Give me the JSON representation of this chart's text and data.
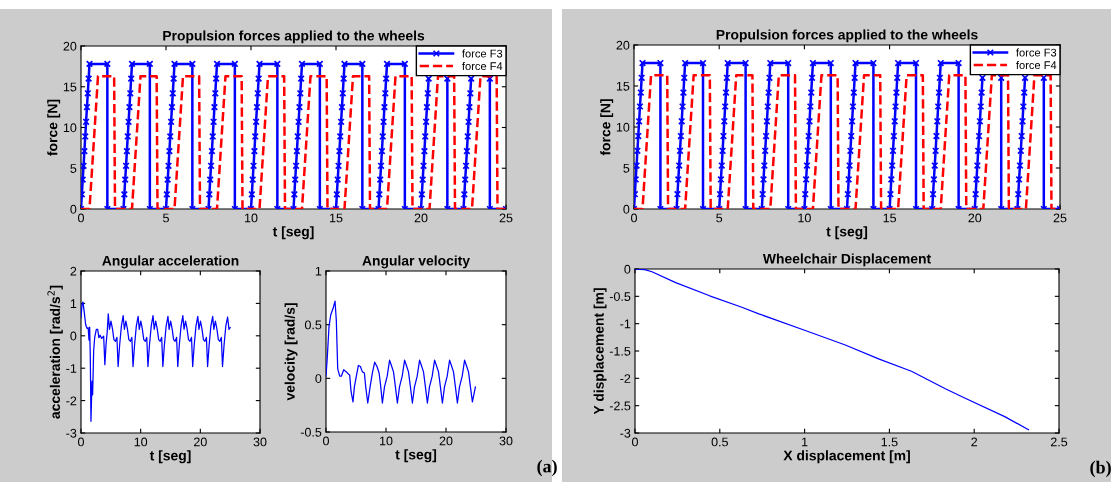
{
  "chart_data": [
    {
      "type": "line",
      "title": "Propulsion forces applied to the wheels",
      "xlabel": "t [seg]",
      "ylabel": "force [N]",
      "xlim": [
        0,
        25
      ],
      "ylim": [
        0,
        20
      ],
      "xticks": [
        0,
        5,
        10,
        15,
        20,
        25
      ],
      "yticks": [
        0,
        5,
        10,
        15,
        20
      ],
      "grid": false,
      "legend": "top right",
      "series": [
        {
          "name": "force F3",
          "color": "#0000ff",
          "marker": "cross",
          "line_style": "solid",
          "x": [
            0,
            0.05,
            0.1,
            0.15,
            0.2,
            0.25,
            0.3,
            0.35,
            0.4,
            0.45,
            0.5,
            1.55,
            1.55,
            2.5,
            2.55,
            2.6,
            2.65,
            2.7,
            2.75,
            2.8,
            2.85,
            2.9,
            2.95,
            3,
            4.05,
            4.05,
            5,
            5.05,
            5.1,
            5.15,
            5.2,
            5.25,
            5.3,
            5.35,
            5.4,
            5.45,
            5.5,
            6.55,
            6.55,
            7.5,
            7.55,
            7.6,
            7.65,
            7.7,
            7.75,
            7.8,
            7.85,
            7.9,
            7.95,
            8,
            9.05,
            9.05,
            10,
            10.05,
            10.1,
            10.15,
            10.2,
            10.25,
            10.3,
            10.35,
            10.4,
            10.45,
            10.5,
            11.55,
            11.55,
            12.5,
            12.55,
            12.6,
            12.65,
            12.7,
            12.75,
            12.8,
            12.85,
            12.9,
            12.95,
            13,
            14.05,
            14.05,
            15,
            15.05,
            15.1,
            15.15,
            15.2,
            15.25,
            15.3,
            15.35,
            15.4,
            15.45,
            15.5,
            16.55,
            16.55,
            17.5,
            17.55,
            17.6,
            17.65,
            17.7,
            17.75,
            17.8,
            17.85,
            17.9,
            17.95,
            18,
            19.05,
            19.05,
            20,
            20.05,
            20.1,
            20.15,
            20.2,
            20.25,
            20.3,
            20.35,
            20.4,
            20.45,
            null,
            21.55,
            21.55,
            22.5,
            22.55,
            22.6,
            22.65,
            22.7,
            22.75,
            22.8,
            22.85,
            22.9,
            22.95,
            null,
            24.05,
            24.05,
            25
          ],
          "values": [
            0,
            1.8,
            3.6,
            5.3,
            7.1,
            8.9,
            10.7,
            12.5,
            14.2,
            16,
            17.8,
            17.8,
            0,
            0,
            1.8,
            3.6,
            5.3,
            7.1,
            8.9,
            10.7,
            12.5,
            14.2,
            16,
            17.8,
            17.8,
            0,
            0,
            1.8,
            3.6,
            5.3,
            7.1,
            8.9,
            10.7,
            12.5,
            14.2,
            16,
            17.8,
            17.8,
            0,
            0,
            1.8,
            3.6,
            5.3,
            7.1,
            8.9,
            10.7,
            12.5,
            14.2,
            16,
            17.8,
            17.8,
            0,
            0,
            1.8,
            3.6,
            5.3,
            7.1,
            8.9,
            10.7,
            12.5,
            14.2,
            16,
            17.8,
            17.8,
            0,
            0,
            1.8,
            3.6,
            5.3,
            7.1,
            8.9,
            10.7,
            12.5,
            14.2,
            16,
            17.8,
            17.8,
            0,
            0,
            1.8,
            3.6,
            5.3,
            7.1,
            8.9,
            10.7,
            12.5,
            14.2,
            16,
            17.8,
            17.8,
            0,
            0,
            1.8,
            3.6,
            5.3,
            7.1,
            8.9,
            10.7,
            12.5,
            14.2,
            16,
            17.8,
            17.8,
            0,
            0,
            1.8,
            3.6,
            5.3,
            7.1,
            8.9,
            10.7,
            12.5,
            14.2,
            16,
            null,
            16,
            0,
            0,
            1.8,
            3.6,
            5.3,
            7.1,
            8.9,
            10.7,
            12.5,
            14.2,
            16,
            null,
            16,
            0,
            0
          ]
        },
        {
          "name": "force F4",
          "color": "#ff0000",
          "marker": "none",
          "line_style": "dashed",
          "x": [
            0,
            0.5,
            1,
            1.95,
            2,
            3,
            3.5,
            4.45,
            4.5,
            5.5,
            6,
            6.95,
            7,
            8,
            8.5,
            9.45,
            9.5,
            10.5,
            11,
            11.95,
            12,
            13,
            13.5,
            14.45,
            14.5,
            15.5,
            16,
            16.95,
            17,
            18,
            18.5,
            19.45,
            19.5,
            20.5,
            21,
            21.95,
            22,
            23,
            23.5,
            24.45,
            24.5,
            25
          ],
          "values": [
            0,
            0,
            16.3,
            16.3,
            0,
            0,
            16.3,
            16.3,
            0,
            0,
            16.3,
            16.3,
            0,
            0,
            16.3,
            16.3,
            0,
            0,
            16.3,
            16.3,
            0,
            0,
            16.3,
            16.3,
            0,
            0,
            16.3,
            16.3,
            0,
            0,
            16.3,
            16.3,
            0,
            0,
            16.3,
            16.3,
            0,
            0,
            16.3,
            16.3,
            0,
            0
          ]
        }
      ]
    },
    {
      "type": "line",
      "title": "Angular acceleration",
      "xlabel": "t [seg]",
      "ylabel": "acceleration [rad/s$^{2}$]",
      "xlim": [
        0,
        30
      ],
      "ylim": [
        -3,
        2
      ],
      "xticks": [
        0,
        10,
        20,
        30
      ],
      "yticks": [
        -3,
        -2,
        -1,
        0,
        1,
        2
      ],
      "grid": false,
      "series": [
        {
          "color": "#0000ff",
          "x": [
            0,
            0.17,
            0.33,
            0.56,
            0.78,
            1,
            1.2,
            1.34,
            1.45,
            1.56,
            1.67,
            1.84,
            1.95,
            2.12,
            2.29,
            2.57,
            2.79,
            3,
            3.2,
            3.46,
            3.8,
            4,
            4.2,
            4.4,
            4.57,
            4.77,
            5.02,
            5.27,
            5.52,
            5.77,
            6.02,
            6.22,
            6.47,
            6.77,
            7.07,
            7.27,
            7.52,
            7.77,
            8.02,
            8.27,
            8.52,
            8.72,
            8.97,
            9.27,
            9.57,
            9.77,
            10.02,
            10.27,
            10.52,
            10.77,
            11.02,
            11.22,
            11.47,
            11.77,
            12.07,
            12.27,
            12.52,
            12.77,
            13.02,
            13.27,
            13.52,
            13.72,
            13.97,
            14.27,
            14.57,
            14.77,
            15.02,
            15.27,
            15.52,
            15.77,
            16.02,
            16.22,
            16.47,
            16.77,
            17.07,
            17.27,
            17.52,
            17.77,
            18.02,
            18.27,
            18.52,
            18.72,
            18.97,
            19.27,
            19.57,
            19.77,
            20.02,
            20.27,
            20.52,
            20.77,
            21.02,
            21.22,
            21.47,
            21.77,
            22.07,
            22.27,
            22.52,
            22.77,
            23.02,
            23.27,
            23.52,
            23.72,
            23.97,
            24.27,
            24.57,
            24.8,
            25
          ],
          "values": [
            0.56,
            0.97,
            1.04,
            0.71,
            0.35,
            0.23,
            0.25,
            -0.13,
            0.27,
            -0.68,
            -2.64,
            -1.4,
            -1.82,
            -0.47,
            -0.06,
            0.2,
            0.2,
            -0.06,
            0.02,
            -0.08,
            -0.01,
            -0.89,
            -0.27,
            0.14,
            0.68,
            0.2,
            0.45,
            0.22,
            -0.12,
            -0.17,
            -0.05,
            -0.95,
            -0.3,
            0.3,
            0.62,
            0.2,
            0.45,
            0.22,
            -0.12,
            -0.17,
            -0.05,
            -0.95,
            -0.3,
            0.3,
            0.6,
            0.2,
            0.45,
            0.22,
            -0.12,
            -0.17,
            -0.05,
            -0.95,
            -0.3,
            0.3,
            0.62,
            0.2,
            0.45,
            0.22,
            -0.12,
            -0.17,
            -0.05,
            -0.95,
            -0.3,
            0.3,
            0.6,
            0.2,
            0.45,
            0.22,
            -0.12,
            -0.17,
            -0.05,
            -0.95,
            -0.3,
            0.3,
            0.62,
            0.2,
            0.45,
            0.22,
            -0.12,
            -0.17,
            -0.05,
            -0.95,
            -0.3,
            0.3,
            0.6,
            0.2,
            0.45,
            0.22,
            -0.12,
            -0.17,
            -0.05,
            -0.95,
            -0.3,
            0.3,
            0.6,
            0.2,
            0.45,
            0.22,
            -0.12,
            -0.17,
            -0.05,
            -0.95,
            -0.3,
            0.3,
            0.58,
            0.2,
            0.25
          ]
        }
      ]
    },
    {
      "type": "line",
      "title": "Angular velocity",
      "xlabel": "t [seg]",
      "ylabel": "velocity [rad/s]",
      "xlim": [
        0,
        30
      ],
      "ylim": [
        -0.5,
        1
      ],
      "xticks": [
        0,
        10,
        20,
        30
      ],
      "yticks": [
        -0.5,
        0,
        0.5,
        1
      ],
      "grid": false,
      "annotations": [
        "(a)"
      ],
      "series": [
        {
          "color": "#0000ff",
          "x": [
            0,
            0.22,
            0.5,
            0.78,
            1.17,
            1.5,
            1.72,
            1.95,
            2.28,
            2.56,
            2.95,
            3.4,
            3.73,
            3.95,
            4.17,
            4.5,
            4.73,
            5.06,
            5.4,
            5.73,
            6.07,
            6.4,
            6.62,
            6.96,
            7.35,
            7.73,
            8.12,
            8.5,
            8.85,
            9.07,
            9.4,
            9.75,
            10.2,
            10.6,
            10.9,
            11.25,
            11.5,
            11.9,
            12.25,
            12.7,
            13.1,
            13.4,
            13.75,
            14,
            14.4,
            14.75,
            15.2,
            15.6,
            15.9,
            16.25,
            16.5,
            16.9,
            17.25,
            17.7,
            18.1,
            18.4,
            18.75,
            19,
            19.4,
            19.75,
            20.2,
            20.6,
            20.9,
            21.25,
            21.5,
            21.9,
            22.25,
            22.7,
            23.1,
            23.4,
            23.75,
            24,
            24.4,
            24.9
          ],
          "values": [
            0.02,
            0.2,
            0.48,
            0.59,
            0.65,
            0.72,
            0.54,
            0.09,
            0.02,
            0.02,
            0.08,
            0.06,
            0.04,
            0.03,
            -0.12,
            -0.22,
            -0.08,
            0.02,
            0.12,
            0.11,
            0.06,
            0.05,
            -0.08,
            -0.23,
            -0.08,
            0.05,
            0.15,
            0.11,
            0.05,
            -0.05,
            -0.23,
            -0.08,
            0.02,
            0.17,
            0.12,
            0.06,
            -0.05,
            -0.23,
            -0.08,
            0.02,
            0.17,
            0.12,
            0.06,
            -0.05,
            -0.23,
            -0.08,
            0.02,
            0.17,
            0.12,
            0.06,
            -0.05,
            -0.23,
            -0.08,
            0.02,
            0.17,
            0.12,
            0.06,
            -0.05,
            -0.23,
            -0.08,
            0.02,
            0.17,
            0.12,
            0.06,
            -0.05,
            -0.23,
            -0.08,
            0.02,
            0.17,
            0.12,
            0.06,
            -0.05,
            -0.22,
            -0.08
          ]
        }
      ]
    },
    {
      "type": "line",
      "title": "Propulsion forces applied to the wheels",
      "xlabel": "t [seg]",
      "ylabel": "force [N]",
      "xlim": [
        0,
        25
      ],
      "ylim": [
        0,
        20
      ],
      "xticks": [
        0,
        5,
        10,
        15,
        20,
        25
      ],
      "yticks": [
        0,
        5,
        10,
        15,
        20
      ],
      "grid": false,
      "legend": "top right",
      "series": [
        {
          "name": "force F3",
          "color": "#0000ff",
          "marker": "cross",
          "line_style": "solid",
          "x": [
            0,
            0.05,
            0.1,
            0.15,
            0.2,
            0.25,
            0.3,
            0.35,
            0.4,
            0.45,
            0.5,
            1.55,
            1.55,
            2.5,
            2.55,
            2.6,
            2.65,
            2.7,
            2.75,
            2.8,
            2.85,
            2.9,
            2.95,
            3,
            4.05,
            4.05,
            5,
            5.05,
            5.1,
            5.15,
            5.2,
            5.25,
            5.3,
            5.35,
            5.4,
            5.45,
            5.5,
            6.55,
            6.55,
            7.5,
            7.55,
            7.6,
            7.65,
            7.7,
            7.75,
            7.8,
            7.85,
            7.9,
            7.95,
            8,
            9.05,
            9.05,
            10,
            10.05,
            10.1,
            10.15,
            10.2,
            10.25,
            10.3,
            10.35,
            10.4,
            10.45,
            10.5,
            11.55,
            11.55,
            12.5,
            12.55,
            12.6,
            12.65,
            12.7,
            12.75,
            12.8,
            12.85,
            12.9,
            12.95,
            13,
            14.05,
            14.05,
            15,
            15.05,
            15.1,
            15.15,
            15.2,
            15.25,
            15.3,
            15.35,
            15.4,
            15.45,
            15.5,
            16.55,
            16.55,
            17.5,
            17.55,
            17.6,
            17.65,
            17.7,
            17.75,
            17.8,
            17.85,
            17.9,
            17.95,
            18,
            19.05,
            19.05,
            20,
            20.05,
            20.1,
            20.15,
            20.2,
            20.25,
            20.3,
            20.35,
            20.4,
            20.45,
            null,
            21.55,
            21.55,
            22.5,
            22.55,
            22.6,
            22.65,
            22.7,
            22.75,
            22.8,
            22.85,
            22.9,
            22.95,
            null,
            24.05,
            24.05,
            25
          ],
          "values": [
            0,
            1.8,
            3.6,
            5.3,
            7.1,
            8.9,
            10.7,
            12.5,
            14.2,
            16,
            17.8,
            17.8,
            0,
            0,
            1.8,
            3.6,
            5.3,
            7.1,
            8.9,
            10.7,
            12.5,
            14.2,
            16,
            17.8,
            17.8,
            0,
            0,
            1.8,
            3.6,
            5.3,
            7.1,
            8.9,
            10.7,
            12.5,
            14.2,
            16,
            17.8,
            17.8,
            0,
            0,
            1.8,
            3.6,
            5.3,
            7.1,
            8.9,
            10.7,
            12.5,
            14.2,
            16,
            17.8,
            17.8,
            0,
            0,
            1.8,
            3.6,
            5.3,
            7.1,
            8.9,
            10.7,
            12.5,
            14.2,
            16,
            17.8,
            17.8,
            0,
            0,
            1.8,
            3.6,
            5.3,
            7.1,
            8.9,
            10.7,
            12.5,
            14.2,
            16,
            17.8,
            17.8,
            0,
            0,
            1.8,
            3.6,
            5.3,
            7.1,
            8.9,
            10.7,
            12.5,
            14.2,
            16,
            17.8,
            17.8,
            0,
            0,
            1.8,
            3.6,
            5.3,
            7.1,
            8.9,
            10.7,
            12.5,
            14.2,
            16,
            17.8,
            17.8,
            0,
            0,
            1.8,
            3.6,
            5.3,
            7.1,
            8.9,
            10.7,
            12.5,
            14.2,
            16,
            null,
            16,
            0,
            0,
            1.8,
            3.6,
            5.3,
            7.1,
            8.9,
            10.7,
            12.5,
            14.2,
            16,
            null,
            16,
            0,
            0
          ]
        },
        {
          "name": "force F4",
          "color": "#ff0000",
          "marker": "none",
          "line_style": "dashed",
          "x": [
            0,
            0.5,
            1,
            1.95,
            2,
            3,
            3.5,
            4.45,
            4.5,
            5.5,
            6,
            6.95,
            7,
            8,
            8.5,
            9.45,
            9.5,
            10.5,
            11,
            11.95,
            12,
            13,
            13.5,
            14.45,
            14.5,
            15.5,
            16,
            16.95,
            17,
            18,
            18.5,
            19.45,
            19.5,
            20.5,
            21,
            21.95,
            22,
            23,
            23.5,
            24.45,
            24.5,
            25
          ],
          "values": [
            0,
            0,
            16.3,
            16.3,
            0,
            0,
            16.3,
            16.3,
            0,
            0,
            16.3,
            16.3,
            0,
            0,
            16.3,
            16.3,
            0,
            0,
            16.3,
            16.3,
            0,
            0,
            16.3,
            16.3,
            0,
            0,
            16.3,
            16.3,
            0,
            0,
            16.3,
            16.3,
            0,
            0,
            16.3,
            16.3,
            0,
            0,
            16.3,
            16.3,
            0,
            0
          ]
        }
      ]
    },
    {
      "type": "line",
      "title": "Wheelchair Displacement",
      "xlabel": "X displacement [m]",
      "ylabel": "Y displacement [m]",
      "xlim": [
        0,
        2.5
      ],
      "ylim": [
        -3,
        0
      ],
      "xticks": [
        0,
        0.5,
        1,
        1.5,
        2,
        2.5
      ],
      "yticks": [
        -3,
        -2.5,
        -2,
        -1.5,
        -1,
        -0.5,
        0
      ],
      "grid": false,
      "annotations": [
        "(b)"
      ],
      "series": [
        {
          "color": "#0000ff",
          "x": [
            0,
            0.057,
            0.1,
            0.24,
            0.44,
            0.63,
            0.73,
            1,
            1.24,
            1.44,
            1.63,
            1.83,
            1.95,
            2.18,
            2.32
          ],
          "values": [
            0,
            -0.01,
            -0.05,
            -0.25,
            -0.49,
            -0.7,
            -0.82,
            -1.12,
            -1.39,
            -1.65,
            -1.87,
            -2.19,
            -2.37,
            -2.7,
            -2.94
          ]
        }
      ]
    }
  ]
}
